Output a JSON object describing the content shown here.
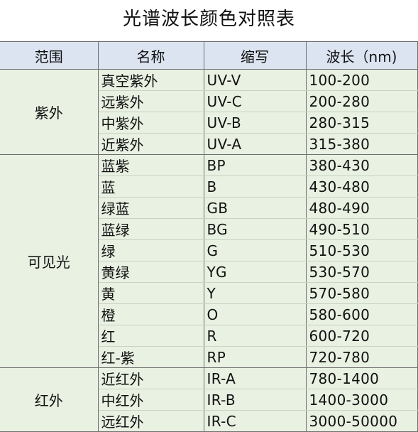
{
  "title": "光谱波长颜色对照表",
  "headers": [
    "范围",
    "名称",
    "缩写",
    "波长（nm)"
  ],
  "groups": [
    {
      "range": "紫外",
      "rows": [
        {
          "name": "真空紫外",
          "abbr": "UV-V",
          "wave": "100-200"
        },
        {
          "name": "远紫外",
          "abbr": "UV-C",
          "wave": "200-280"
        },
        {
          "name": "中紫外",
          "abbr": "UV-B",
          "wave": "280-315"
        },
        {
          "name": "近紫外",
          "abbr": "UV-A",
          "wave": "315-380"
        }
      ]
    },
    {
      "range": "可见光",
      "rows": [
        {
          "name": "蓝紫",
          "abbr": "BP",
          "wave": "380-430"
        },
        {
          "name": "蓝",
          "abbr": "B",
          "wave": "430-480"
        },
        {
          "name": "绿蓝",
          "abbr": "GB",
          "wave": "480-490"
        },
        {
          "name": "蓝绿",
          "abbr": "BG",
          "wave": "490-510"
        },
        {
          "name": "绿",
          "abbr": "G",
          "wave": "510-530"
        },
        {
          "name": "黄绿",
          "abbr": "YG",
          "wave": "530-570"
        },
        {
          "name": "黄",
          "abbr": "Y",
          "wave": "570-580"
        },
        {
          "name": "橙",
          "abbr": "O",
          "wave": "580-600"
        },
        {
          "name": "红",
          "abbr": "R",
          "wave": "600-720"
        },
        {
          "name": "红-紫",
          "abbr": "RP",
          "wave": "720-780"
        }
      ]
    },
    {
      "range": "红外",
      "rows": [
        {
          "name": "近红外",
          "abbr": "IR-A",
          "wave": "780-1400"
        },
        {
          "name": "中红外",
          "abbr": "IR-B",
          "wave": "1400-3000"
        },
        {
          "name": "远红外",
          "abbr": "IR-C",
          "wave": "3000-50000"
        }
      ]
    }
  ]
}
